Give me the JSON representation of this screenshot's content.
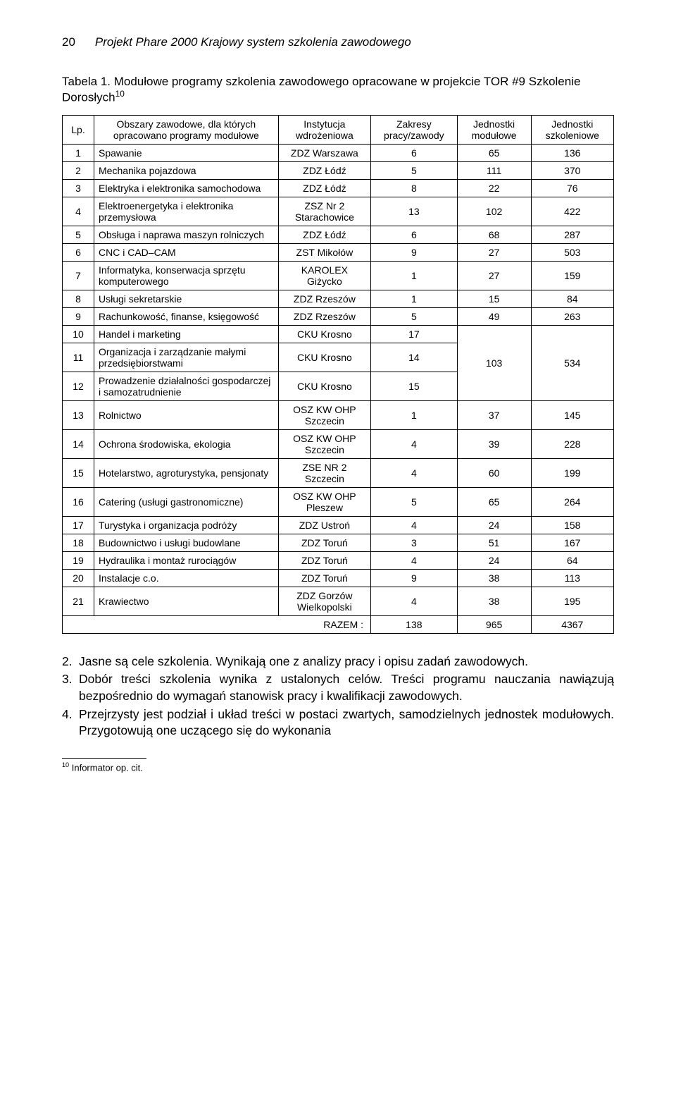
{
  "header": {
    "page_number": "20",
    "running_title": "Projekt Phare 2000 Krajowy system szkolenia zawodowego"
  },
  "caption": "Tabela 1. Modułowe programy szkolenia zawodowego opracowane w projekcie TOR #9 Szkolenie Dorosłych",
  "caption_sup": "10",
  "table": {
    "columns": [
      "Lp.",
      "Obszary zawodowe, dla których opracowano programy modułowe",
      "Instytucja wdrożeniowa",
      "Zakresy pracy/zawody",
      "Jednostki modułowe",
      "Jednostki szkoleniowe"
    ],
    "rows": [
      {
        "lp": "1",
        "desc": "Spawanie",
        "inst": "ZDZ Warszawa",
        "c1": "6",
        "c2": "65",
        "c3": "136"
      },
      {
        "lp": "2",
        "desc": "Mechanika pojazdowa",
        "inst": "ZDZ Łódź",
        "c1": "5",
        "c2": "111",
        "c3": "370"
      },
      {
        "lp": "3",
        "desc": "Elektryka i elektronika samochodowa",
        "inst": "ZDZ Łódź",
        "c1": "8",
        "c2": "22",
        "c3": "76"
      },
      {
        "lp": "4",
        "desc": "Elektroenergetyka i elektronika przemysłowa",
        "inst": "ZSZ Nr 2 Starachowice",
        "c1": "13",
        "c2": "102",
        "c3": "422"
      },
      {
        "lp": "5",
        "desc": "Obsługa i naprawa maszyn rolniczych",
        "inst": "ZDZ Łódź",
        "c1": "6",
        "c2": "68",
        "c3": "287"
      },
      {
        "lp": "6",
        "desc": "CNC i CAD–CAM",
        "inst": "ZST Mikołów",
        "c1": "9",
        "c2": "27",
        "c3": "503"
      },
      {
        "lp": "7",
        "desc": "Informatyka, konserwacja sprzętu komputerowego",
        "inst": "KAROLEX Giżycko",
        "c1": "1",
        "c2": "27",
        "c3": "159"
      },
      {
        "lp": "8",
        "desc": "Usługi sekretarskie",
        "inst": "ZDZ Rzeszów",
        "c1": "1",
        "c2": "15",
        "c3": "84"
      },
      {
        "lp": "9",
        "desc": "Rachunkowość, finanse, księgowość",
        "inst": "ZDZ Rzeszów",
        "c1": "5",
        "c2": "49",
        "c3": "263"
      },
      {
        "lp": "10",
        "desc": "Handel i marketing",
        "inst": "CKU Krosno",
        "c1": "17"
      },
      {
        "lp": "11",
        "desc": "Organizacja i zarządzanie małymi przedsiębiorstwami",
        "inst": "CKU Krosno",
        "c1": "14"
      },
      {
        "lp": "12",
        "desc": "Prowadzenie działalności gospodarczej i samozatrudnienie",
        "inst": "CKU Krosno",
        "c1": "15"
      },
      {
        "lp": "13",
        "desc": "Rolnictwo",
        "inst": "OSZ KW OHP Szczecin",
        "c1": "1",
        "c2": "37",
        "c3": "145"
      },
      {
        "lp": "14",
        "desc": "Ochrona środowiska, ekologia",
        "inst": "OSZ KW OHP Szczecin",
        "c1": "4",
        "c2": "39",
        "c3": "228"
      },
      {
        "lp": "15",
        "desc": "Hotelarstwo, agroturystyka, pensjonaty",
        "inst": "ZSE NR 2 Szczecin",
        "c1": "4",
        "c2": "60",
        "c3": "199"
      },
      {
        "lp": "16",
        "desc": "Catering (usługi gastronomiczne)",
        "inst": "OSZ KW OHP Pleszew",
        "c1": "5",
        "c2": "65",
        "c3": "264"
      },
      {
        "lp": "17",
        "desc": "Turystyka i organizacja podróży",
        "inst": "ZDZ Ustroń",
        "c1": "4",
        "c2": "24",
        "c3": "158"
      },
      {
        "lp": "18",
        "desc": "Budownictwo i usługi budowlane",
        "inst": "ZDZ Toruń",
        "c1": "3",
        "c2": "51",
        "c3": "167"
      },
      {
        "lp": "19",
        "desc": "Hydraulika i montaż rurociągów",
        "inst": "ZDZ Toruń",
        "c1": "4",
        "c2": "24",
        "c3": "64"
      },
      {
        "lp": "20",
        "desc": "Instalacje c.o.",
        "inst": "ZDZ Toruń",
        "c1": "9",
        "c2": "38",
        "c3": "113"
      },
      {
        "lp": "21",
        "desc": "Krawiectwo",
        "inst": "ZDZ Gorzów Wielkopolski",
        "c1": "4",
        "c2": "38",
        "c3": "195"
      }
    ],
    "group_cell": {
      "c2": "103",
      "c3": "534"
    },
    "razem_label": "RAZEM :",
    "razem": {
      "c1": "138",
      "c2": "965",
      "c3": "4367"
    }
  },
  "body_items": [
    {
      "num": "2.",
      "text": "Jasne są cele szkolenia. Wynikają one z analizy pracy i opisu zadań zawodowych."
    },
    {
      "num": "3.",
      "text": "Dobór treści szkolenia wynika z ustalonych celów. Treści programu nauczania nawiązują bezpośrednio do wymagań stanowisk pracy i kwalifikacji zawodowych."
    },
    {
      "num": "4.",
      "text": "Przejrzysty jest podział i układ treści w postaci zwartych, samodzielnych jednostek modułowych. Przygotowują one uczącego się do wykonania"
    }
  ],
  "footnote": {
    "marker": "10",
    "text": "Informator op. cit."
  },
  "style": {
    "grid_color": "#000000",
    "background": "#ffffff"
  }
}
